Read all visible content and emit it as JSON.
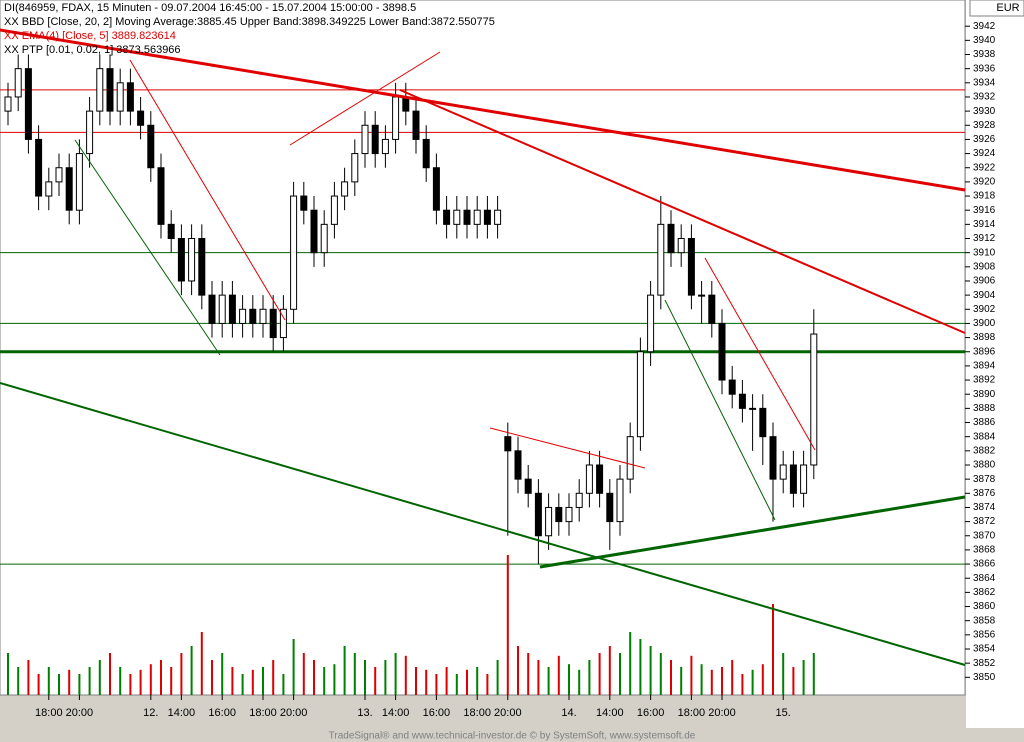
{
  "chart_data": {
    "type": "candlestick",
    "legend_lines": [
      {
        "text": "DI(846959, FDAX, 15 Minuten - 09.07.2004 16:45:00 - 15.07.2004 15:00:00 - 3898.5",
        "color": "#000000"
      },
      {
        "text": "XX BBD [Close, 20, 2] Moving Average:3885.45 Upper Band:3898.349225 Lower Band:3872.550775",
        "color": "#000000"
      },
      {
        "text": "XX EMA(4) [Close, 5] 3889.823614",
        "color": "#dd0000"
      },
      {
        "text": "XX PTP [0.01, 0.02, 1] 3873.563966",
        "color": "#000000"
      }
    ],
    "currency": "EUR",
    "footer": "TradeSignal® and www.technical-investor.de © by SystemSoft, www.systemsoft.de",
    "categories": [
      null,
      null,
      null,
      null,
      "18:00",
      null,
      null,
      "20:00",
      null,
      null,
      null,
      null,
      null,
      null,
      "12.",
      null,
      null,
      "14:00",
      null,
      null,
      null,
      "16:00",
      null,
      null,
      null,
      "18:00",
      null,
      null,
      "20:00",
      null,
      null,
      null,
      null,
      null,
      null,
      "13.",
      null,
      null,
      "14:00",
      null,
      null,
      null,
      "16:00",
      null,
      null,
      null,
      "18:00",
      null,
      null,
      "20:00",
      null,
      null,
      null,
      null,
      null,
      "14.",
      null,
      null,
      null,
      "14:00",
      null,
      null,
      null,
      "16:00",
      null,
      null,
      null,
      "18:00",
      null,
      null,
      "20:00",
      null,
      null,
      null,
      null,
      null,
      "15.",
      null,
      null,
      null
    ],
    "open": [
      3930,
      3932,
      3936,
      3926,
      3918,
      3920,
      3922,
      3916,
      3924,
      3930,
      3936,
      3930,
      3934,
      3930,
      3928,
      3922,
      3914,
      3912,
      3906,
      3912,
      3904,
      3900,
      3904,
      3900,
      3902,
      3900,
      3902,
      3898,
      3902,
      3918,
      3916,
      3910,
      3914,
      3918,
      3920,
      3924,
      3928,
      3924,
      3926,
      3932,
      3930,
      3926,
      3922,
      3916,
      3914,
      3916,
      3914,
      3916,
      3914,
      3884,
      3882,
      3878,
      3876,
      3870,
      3874,
      3872,
      3874,
      3876,
      3880,
      3876,
      3872,
      3878,
      3884,
      3896,
      3904,
      3914,
      3910,
      3912,
      3904,
      3904,
      3900,
      3892,
      3890,
      3888,
      3888,
      3884,
      3878,
      3880,
      3876,
      3880
    ],
    "high": [
      3934,
      3938,
      3938,
      3928,
      3922,
      3924,
      3924,
      3926,
      3932,
      3938,
      3938,
      3936,
      3936,
      3932,
      3930,
      3924,
      3916,
      3914,
      3914,
      3914,
      3906,
      3906,
      3906,
      3904,
      3904,
      3904,
      3904,
      3904,
      3920,
      3920,
      3918,
      3916,
      3920,
      3922,
      3926,
      3930,
      3930,
      3928,
      3934,
      3934,
      3932,
      3928,
      3924,
      3918,
      3918,
      3918,
      3918,
      3918,
      3918,
      3886,
      3884,
      3880,
      3878,
      3876,
      3876,
      3876,
      3878,
      3882,
      3882,
      3878,
      3880,
      3886,
      3898,
      3906,
      3918,
      3916,
      3914,
      3914,
      3906,
      3906,
      3902,
      3894,
      3892,
      3890,
      3890,
      3886,
      3882,
      3882,
      3882,
      3902
    ],
    "low": [
      3928,
      3930,
      3924,
      3916,
      3916,
      3918,
      3914,
      3914,
      3922,
      3928,
      3928,
      3928,
      3928,
      3926,
      3920,
      3912,
      3910,
      3904,
      3904,
      3902,
      3898,
      3898,
      3898,
      3898,
      3898,
      3898,
      3896,
      3896,
      3900,
      3914,
      3908,
      3908,
      3912,
      3916,
      3918,
      3922,
      3922,
      3922,
      3924,
      3928,
      3924,
      3920,
      3914,
      3912,
      3912,
      3912,
      3912,
      3912,
      3912,
      3870,
      3876,
      3874,
      3866,
      3868,
      3870,
      3870,
      3872,
      3874,
      3874,
      3868,
      3870,
      3876,
      3882,
      3894,
      3902,
      3908,
      3908,
      3902,
      3900,
      3898,
      3890,
      3888,
      3886,
      3882,
      3880,
      3872,
      3876,
      3874,
      3874,
      3878
    ],
    "close": [
      3932,
      3936,
      3926,
      3918,
      3920,
      3922,
      3916,
      3924,
      3930,
      3936,
      3930,
      3934,
      3930,
      3928,
      3922,
      3914,
      3912,
      3906,
      3912,
      3904,
      3900,
      3904,
      3900,
      3902,
      3900,
      3902,
      3898,
      3902,
      3918,
      3916,
      3910,
      3914,
      3918,
      3920,
      3924,
      3928,
      3924,
      3926,
      3932,
      3930,
      3926,
      3922,
      3916,
      3914,
      3916,
      3914,
      3916,
      3914,
      3916,
      3882,
      3878,
      3876,
      3870,
      3874,
      3872,
      3874,
      3876,
      3880,
      3876,
      3872,
      3878,
      3884,
      3896,
      3904,
      3914,
      3910,
      3912,
      3904,
      3904,
      3900,
      3892,
      3890,
      3888,
      3888,
      3884,
      3878,
      3880,
      3876,
      3880,
      3898.5
    ],
    "volume": [
      30,
      20,
      25,
      15,
      20,
      15,
      18,
      15,
      20,
      25,
      30,
      20,
      15,
      18,
      22,
      25,
      20,
      30,
      35,
      45,
      25,
      30,
      20,
      15,
      18,
      20,
      25,
      15,
      40,
      30,
      25,
      20,
      22,
      35,
      30,
      25,
      20,
      25,
      30,
      28,
      20,
      18,
      15,
      20,
      15,
      18,
      20,
      15,
      25,
      100,
      35,
      30,
      25,
      20,
      28,
      22,
      18,
      25,
      30,
      35,
      30,
      45,
      40,
      35,
      30,
      25,
      20,
      28,
      22,
      18,
      20,
      25,
      15,
      18,
      22,
      65,
      30,
      20,
      25,
      30
    ],
    "volume_lim": [
      0,
      100
    ],
    "up_color": "#008000",
    "down_color": "#dd0000",
    "hlines": [
      {
        "value": 3896,
        "color": "#006400",
        "width": 3
      },
      {
        "value": 3900,
        "color": "#006400",
        "width": 1
      },
      {
        "value": 3910,
        "color": "#006400",
        "width": 1
      },
      {
        "value": 3866,
        "color": "#006400",
        "width": 1
      },
      {
        "value": 3927,
        "color": "#dd0000",
        "width": 1
      },
      {
        "value": 3933,
        "color": "#dd0000",
        "width": 1
      }
    ],
    "ylim": [
      3847.5,
      3945.7
    ],
    "yticks": [
      3850,
      3852,
      3854,
      3856,
      3858,
      3860,
      3862,
      3864,
      3866,
      3868,
      3870,
      3872,
      3874,
      3876,
      3878,
      3880,
      3882,
      3884,
      3886,
      3888,
      3890,
      3892,
      3894,
      3896,
      3898,
      3900,
      3902,
      3904,
      3906,
      3908,
      3910,
      3912,
      3914,
      3916,
      3918,
      3920,
      3922,
      3924,
      3926,
      3928,
      3930,
      3932,
      3934,
      3936,
      3938,
      3940,
      3942
    ]
  }
}
